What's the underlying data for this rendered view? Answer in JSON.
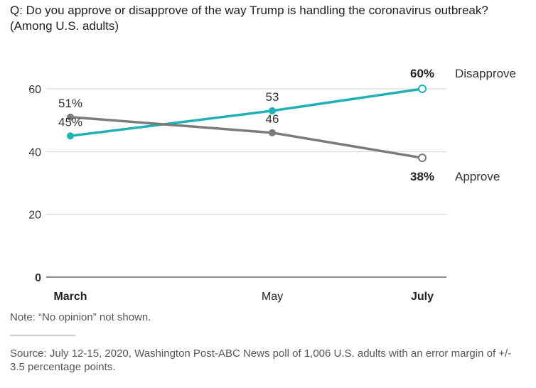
{
  "question": "Q: Do you approve or disapprove of the way Trump is handling the coronavirus outbreak? (Among U.S. adults)",
  "note": "Note: “No opinion” not shown.",
  "source": "Source: July 12-15, 2020, Washington Post-ABC News poll of 1,006 U.S. adults with an error margin of +/- 3.5 percentage points.",
  "chart_data": {
    "type": "line",
    "categories": [
      "March",
      "May",
      "July"
    ],
    "ylim": [
      0,
      60
    ],
    "yticks": [
      "0",
      "20",
      "40",
      "60"
    ],
    "grid": true,
    "series": [
      {
        "name": "Disapprove",
        "values": [
          45,
          53,
          60
        ],
        "labels": [
          "45%",
          "53",
          "60%"
        ],
        "color": "#1fb1b6"
      },
      {
        "name": "Approve",
        "values": [
          51,
          46,
          38
        ],
        "labels": [
          "51%",
          "46",
          "38%"
        ],
        "color": "#7b7b7b"
      }
    ]
  }
}
